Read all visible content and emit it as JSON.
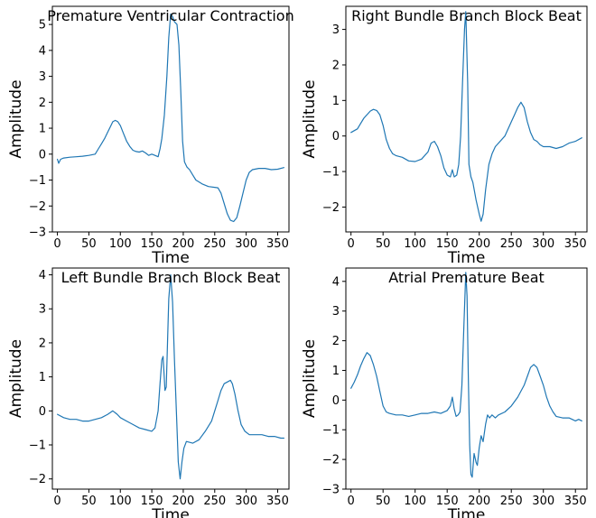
{
  "chart_data": [
    {
      "type": "line",
      "title": "Premature Ventricular Contraction",
      "xlabel": "Time",
      "ylabel": "Amplitude",
      "xlim": [
        -8,
        368
      ],
      "ylim": [
        -3.0,
        5.7
      ],
      "xticks": [
        0,
        50,
        100,
        150,
        200,
        250,
        300,
        350
      ],
      "yticks": [
        -3,
        -2,
        -1,
        0,
        1,
        2,
        3,
        4,
        5
      ],
      "series_color": "#1f77b4",
      "grid": false,
      "points": [
        [
          0,
          -0.2
        ],
        [
          2,
          -0.35
        ],
        [
          5,
          -0.2
        ],
        [
          10,
          -0.15
        ],
        [
          20,
          -0.12
        ],
        [
          30,
          -0.1
        ],
        [
          40,
          -0.08
        ],
        [
          50,
          -0.05
        ],
        [
          60,
          0.0
        ],
        [
          65,
          0.2
        ],
        [
          70,
          0.4
        ],
        [
          75,
          0.6
        ],
        [
          80,
          0.85
        ],
        [
          85,
          1.1
        ],
        [
          88,
          1.25
        ],
        [
          92,
          1.3
        ],
        [
          96,
          1.25
        ],
        [
          100,
          1.1
        ],
        [
          105,
          0.8
        ],
        [
          110,
          0.5
        ],
        [
          115,
          0.3
        ],
        [
          120,
          0.15
        ],
        [
          125,
          0.1
        ],
        [
          130,
          0.08
        ],
        [
          135,
          0.12
        ],
        [
          140,
          0.05
        ],
        [
          145,
          -0.05
        ],
        [
          150,
          0.0
        ],
        [
          155,
          -0.05
        ],
        [
          160,
          -0.1
        ],
        [
          163,
          0.2
        ],
        [
          166,
          0.6
        ],
        [
          170,
          1.5
        ],
        [
          174,
          3.0
        ],
        [
          177,
          4.5
        ],
        [
          180,
          5.4
        ],
        [
          183,
          5.3
        ],
        [
          186,
          5.1
        ],
        [
          190,
          5.0
        ],
        [
          193,
          4.2
        ],
        [
          196,
          2.5
        ],
        [
          199,
          0.5
        ],
        [
          202,
          -0.3
        ],
        [
          206,
          -0.5
        ],
        [
          210,
          -0.6
        ],
        [
          215,
          -0.8
        ],
        [
          220,
          -1.0
        ],
        [
          230,
          -1.15
        ],
        [
          240,
          -1.25
        ],
        [
          250,
          -1.28
        ],
        [
          255,
          -1.3
        ],
        [
          260,
          -1.5
        ],
        [
          265,
          -1.9
        ],
        [
          270,
          -2.3
        ],
        [
          275,
          -2.55
        ],
        [
          280,
          -2.6
        ],
        [
          285,
          -2.45
        ],
        [
          290,
          -2.0
        ],
        [
          295,
          -1.5
        ],
        [
          300,
          -1.0
        ],
        [
          305,
          -0.7
        ],
        [
          310,
          -0.6
        ],
        [
          320,
          -0.55
        ],
        [
          330,
          -0.55
        ],
        [
          340,
          -0.6
        ],
        [
          350,
          -0.58
        ],
        [
          360,
          -0.52
        ]
      ]
    },
    {
      "type": "line",
      "title": "Right Bundle Branch Block Beat",
      "xlabel": "Time",
      "ylabel": "Amplitude",
      "xlim": [
        -8,
        368
      ],
      "ylim": [
        -2.7,
        3.65
      ],
      "xticks": [
        0,
        50,
        100,
        150,
        200,
        250,
        300,
        350
      ],
      "yticks": [
        -2,
        -1,
        0,
        1,
        2,
        3
      ],
      "series_color": "#1f77b4",
      "grid": false,
      "points": [
        [
          0,
          0.1
        ],
        [
          5,
          0.15
        ],
        [
          10,
          0.2
        ],
        [
          15,
          0.35
        ],
        [
          20,
          0.5
        ],
        [
          25,
          0.6
        ],
        [
          30,
          0.7
        ],
        [
          35,
          0.75
        ],
        [
          40,
          0.72
        ],
        [
          45,
          0.6
        ],
        [
          50,
          0.3
        ],
        [
          55,
          -0.1
        ],
        [
          60,
          -0.35
        ],
        [
          65,
          -0.5
        ],
        [
          70,
          -0.55
        ],
        [
          80,
          -0.6
        ],
        [
          90,
          -0.7
        ],
        [
          100,
          -0.72
        ],
        [
          110,
          -0.65
        ],
        [
          120,
          -0.45
        ],
        [
          125,
          -0.2
        ],
        [
          130,
          -0.15
        ],
        [
          135,
          -0.3
        ],
        [
          140,
          -0.55
        ],
        [
          145,
          -0.9
        ],
        [
          150,
          -1.1
        ],
        [
          155,
          -1.15
        ],
        [
          158,
          -0.95
        ],
        [
          161,
          -1.15
        ],
        [
          165,
          -1.1
        ],
        [
          168,
          -0.8
        ],
        [
          171,
          0.0
        ],
        [
          174,
          1.5
        ],
        [
          177,
          3.0
        ],
        [
          179,
          3.5
        ],
        [
          182,
          1.5
        ],
        [
          184,
          -0.8
        ],
        [
          187,
          -1.15
        ],
        [
          190,
          -1.3
        ],
        [
          195,
          -1.8
        ],
        [
          200,
          -2.2
        ],
        [
          203,
          -2.4
        ],
        [
          206,
          -2.2
        ],
        [
          210,
          -1.5
        ],
        [
          215,
          -0.8
        ],
        [
          220,
          -0.5
        ],
        [
          225,
          -0.3
        ],
        [
          230,
          -0.2
        ],
        [
          240,
          0.0
        ],
        [
          245,
          0.2
        ],
        [
          250,
          0.4
        ],
        [
          255,
          0.6
        ],
        [
          260,
          0.8
        ],
        [
          265,
          0.95
        ],
        [
          270,
          0.8
        ],
        [
          275,
          0.4
        ],
        [
          280,
          0.1
        ],
        [
          285,
          -0.1
        ],
        [
          290,
          -0.15
        ],
        [
          295,
          -0.25
        ],
        [
          300,
          -0.3
        ],
        [
          310,
          -0.3
        ],
        [
          320,
          -0.35
        ],
        [
          330,
          -0.3
        ],
        [
          340,
          -0.2
        ],
        [
          350,
          -0.15
        ],
        [
          360,
          -0.05
        ]
      ]
    },
    {
      "type": "line",
      "title": "Left Bundle Branch Block Beat",
      "xlabel": "Time",
      "ylabel": "Amplitude",
      "xlim": [
        -8,
        368
      ],
      "ylim": [
        -2.3,
        4.2
      ],
      "xticks": [
        0,
        50,
        100,
        150,
        200,
        250,
        300,
        350
      ],
      "yticks": [
        -2,
        -1,
        0,
        1,
        2,
        3,
        4
      ],
      "series_color": "#1f77b4",
      "grid": false,
      "points": [
        [
          0,
          -0.1
        ],
        [
          10,
          -0.2
        ],
        [
          20,
          -0.25
        ],
        [
          30,
          -0.25
        ],
        [
          40,
          -0.3
        ],
        [
          50,
          -0.3
        ],
        [
          60,
          -0.25
        ],
        [
          70,
          -0.2
        ],
        [
          80,
          -0.1
        ],
        [
          88,
          0.0
        ],
        [
          95,
          -0.1
        ],
        [
          100,
          -0.2
        ],
        [
          110,
          -0.3
        ],
        [
          120,
          -0.4
        ],
        [
          130,
          -0.5
        ],
        [
          140,
          -0.55
        ],
        [
          150,
          -0.6
        ],
        [
          155,
          -0.5
        ],
        [
          160,
          0.0
        ],
        [
          163,
          0.8
        ],
        [
          166,
          1.5
        ],
        [
          168,
          1.6
        ],
        [
          171,
          0.6
        ],
        [
          173,
          0.7
        ],
        [
          175,
          2.0
        ],
        [
          177,
          3.3
        ],
        [
          180,
          4.0
        ],
        [
          183,
          3.2
        ],
        [
          186,
          1.5
        ],
        [
          189,
          0.0
        ],
        [
          192,
          -1.5
        ],
        [
          195,
          -2.0
        ],
        [
          198,
          -1.5
        ],
        [
          201,
          -1.1
        ],
        [
          205,
          -0.9
        ],
        [
          215,
          -0.95
        ],
        [
          225,
          -0.85
        ],
        [
          235,
          -0.6
        ],
        [
          245,
          -0.3
        ],
        [
          250,
          0.0
        ],
        [
          255,
          0.3
        ],
        [
          260,
          0.6
        ],
        [
          265,
          0.8
        ],
        [
          270,
          0.85
        ],
        [
          275,
          0.9
        ],
        [
          278,
          0.8
        ],
        [
          282,
          0.5
        ],
        [
          287,
          0.0
        ],
        [
          292,
          -0.4
        ],
        [
          298,
          -0.6
        ],
        [
          305,
          -0.7
        ],
        [
          315,
          -0.7
        ],
        [
          325,
          -0.7
        ],
        [
          335,
          -0.75
        ],
        [
          345,
          -0.75
        ],
        [
          355,
          -0.8
        ],
        [
          360,
          -0.8
        ]
      ]
    },
    {
      "type": "line",
      "title": "Atrial Premature Beat",
      "xlabel": "Time",
      "ylabel": "Amplitude",
      "xlim": [
        -8,
        368
      ],
      "ylim": [
        -3.0,
        4.45
      ],
      "xticks": [
        0,
        50,
        100,
        150,
        200,
        250,
        300,
        350
      ],
      "yticks": [
        -3,
        -2,
        -1,
        0,
        1,
        2,
        3,
        4
      ],
      "series_color": "#1f77b4",
      "grid": false,
      "points": [
        [
          0,
          0.4
        ],
        [
          5,
          0.6
        ],
        [
          10,
          0.85
        ],
        [
          15,
          1.15
        ],
        [
          20,
          1.4
        ],
        [
          25,
          1.6
        ],
        [
          30,
          1.5
        ],
        [
          35,
          1.2
        ],
        [
          40,
          0.8
        ],
        [
          45,
          0.3
        ],
        [
          50,
          -0.2
        ],
        [
          55,
          -0.4
        ],
        [
          60,
          -0.45
        ],
        [
          70,
          -0.5
        ],
        [
          80,
          -0.5
        ],
        [
          90,
          -0.55
        ],
        [
          100,
          -0.5
        ],
        [
          110,
          -0.45
        ],
        [
          120,
          -0.45
        ],
        [
          130,
          -0.4
        ],
        [
          140,
          -0.45
        ],
        [
          150,
          -0.35
        ],
        [
          155,
          -0.2
        ],
        [
          158,
          0.1
        ],
        [
          161,
          -0.3
        ],
        [
          164,
          -0.55
        ],
        [
          167,
          -0.5
        ],
        [
          170,
          -0.4
        ],
        [
          173,
          0.5
        ],
        [
          176,
          2.5
        ],
        [
          179,
          4.3
        ],
        [
          181,
          3.5
        ],
        [
          183,
          0.8
        ],
        [
          185,
          -1.5
        ],
        [
          187,
          -2.5
        ],
        [
          189,
          -2.6
        ],
        [
          192,
          -1.8
        ],
        [
          195,
          -2.1
        ],
        [
          197,
          -2.2
        ],
        [
          200,
          -1.6
        ],
        [
          203,
          -1.2
        ],
        [
          206,
          -1.4
        ],
        [
          210,
          -0.8
        ],
        [
          213,
          -0.5
        ],
        [
          216,
          -0.6
        ],
        [
          220,
          -0.5
        ],
        [
          225,
          -0.6
        ],
        [
          230,
          -0.5
        ],
        [
          240,
          -0.4
        ],
        [
          250,
          -0.2
        ],
        [
          260,
          0.1
        ],
        [
          270,
          0.5
        ],
        [
          275,
          0.8
        ],
        [
          280,
          1.1
        ],
        [
          285,
          1.2
        ],
        [
          290,
          1.1
        ],
        [
          295,
          0.8
        ],
        [
          300,
          0.5
        ],
        [
          305,
          0.1
        ],
        [
          310,
          -0.2
        ],
        [
          315,
          -0.4
        ],
        [
          320,
          -0.55
        ],
        [
          330,
          -0.6
        ],
        [
          340,
          -0.6
        ],
        [
          350,
          -0.7
        ],
        [
          355,
          -0.65
        ],
        [
          360,
          -0.7
        ]
      ]
    }
  ]
}
